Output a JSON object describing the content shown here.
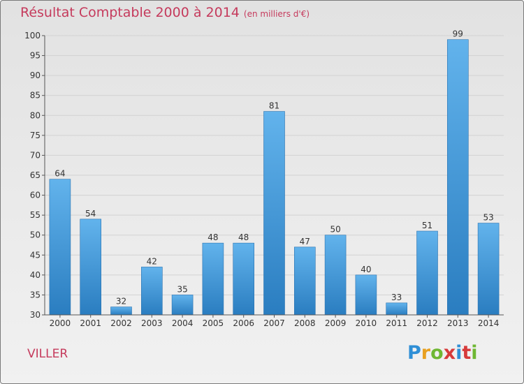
{
  "title": "Résultat Comptable 2000 à 2014",
  "subtitle": "(en milliers d'€)",
  "commune": "VILLER",
  "logo": {
    "p": "P",
    "r": "r",
    "o": "o",
    "x": "x",
    "i": "i",
    "t": "t",
    "i2": "i"
  },
  "colors": {
    "accent": "#c53a5c",
    "bar_light": "#62b3ec",
    "bar_dark": "#2a7dc0"
  },
  "chart_data": {
    "type": "bar",
    "title": "Résultat Comptable 2000 à 2014",
    "ylabel": "en milliers d'€",
    "xlabel": "",
    "categories": [
      "2000",
      "2001",
      "2002",
      "2003",
      "2004",
      "2005",
      "2006",
      "2007",
      "2008",
      "2009",
      "2010",
      "2011",
      "2012",
      "2013",
      "2014"
    ],
    "values": [
      64,
      54,
      32,
      42,
      35,
      48,
      48,
      81,
      47,
      50,
      40,
      33,
      51,
      99,
      53
    ],
    "ylim": [
      30,
      100
    ],
    "yticks": [
      30,
      35,
      40,
      45,
      50,
      55,
      60,
      65,
      70,
      75,
      80,
      85,
      90,
      95,
      100
    ],
    "grid": true
  }
}
